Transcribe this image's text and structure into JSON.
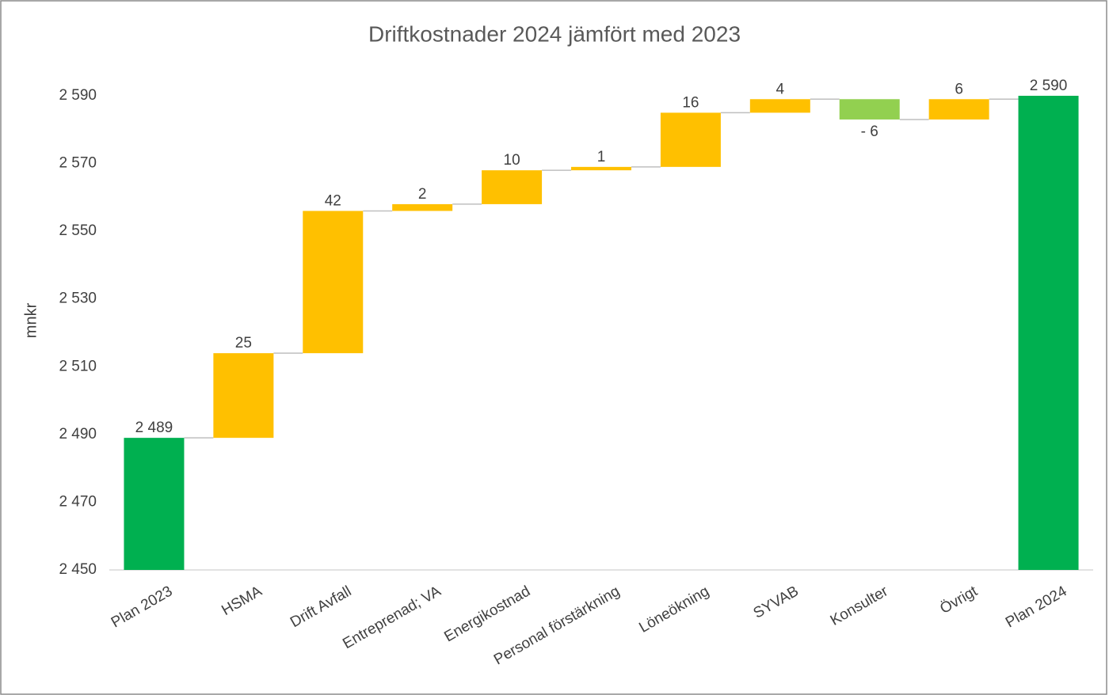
{
  "chart_data": {
    "type": "waterfall",
    "title": "Driftkostnader 2024 jämfört med 2023",
    "y_label": "mnkr",
    "categories": [
      "Plan 2023",
      "HSMA",
      "Drift Avfall",
      "Entreprenad; VA",
      "Energikostnad",
      "Personal förstärkning",
      "Löneökning",
      "SYVAB",
      "Konsulter",
      "Övrigt",
      "Plan 2024"
    ],
    "values": [
      2489,
      25,
      42,
      2,
      10,
      1,
      16,
      4,
      -6,
      6,
      2590
    ],
    "value_labels": [
      "2 489",
      "25",
      "42",
      "2",
      "10",
      "1",
      "16",
      "4",
      "- 6",
      "6",
      "2 590"
    ],
    "colors": [
      "#00b050",
      "#ffc000",
      "#ffc000",
      "#ffc000",
      "#ffc000",
      "#ffc000",
      "#ffc000",
      "#ffc000",
      "#92d050",
      "#ffc000",
      "#00b050"
    ],
    "ylim": [
      2450,
      2600
    ],
    "yticks": [
      {
        "value": 2450,
        "label": "2 450"
      },
      {
        "value": 2470,
        "label": "2 470"
      },
      {
        "value": 2490,
        "label": "2 490"
      },
      {
        "value": 2510,
        "label": "2 510"
      },
      {
        "value": 2530,
        "label": "2 530"
      },
      {
        "value": 2550,
        "label": "2 550"
      },
      {
        "value": 2570,
        "label": "2 570"
      },
      {
        "value": 2590,
        "label": "2 590"
      }
    ],
    "grid": false
  }
}
